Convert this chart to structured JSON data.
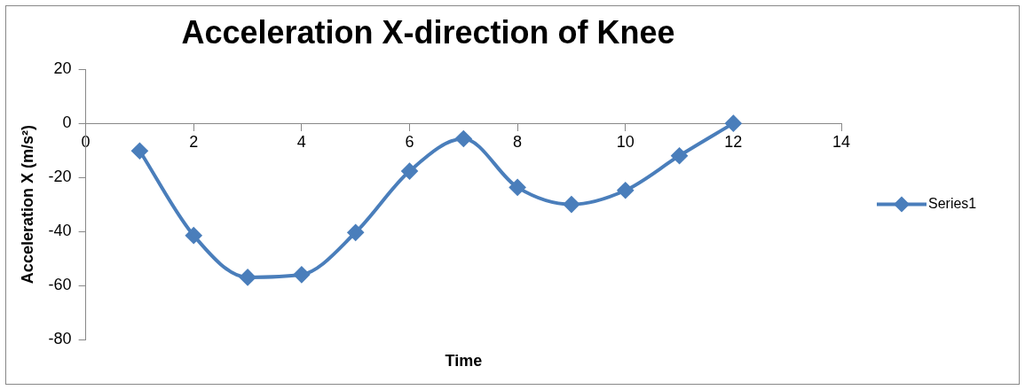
{
  "chart_data": {
    "type": "line",
    "title": "Acceleration X-direction of Knee",
    "xlabel": "Time",
    "ylabel": "Acceleration X (m/s²)",
    "x": [
      1,
      2,
      3,
      4,
      5,
      6,
      7,
      8,
      9,
      10,
      11,
      12
    ],
    "series": [
      {
        "name": "Series1",
        "color": "#4a7ebb",
        "values": [
          -10.2,
          -41.5,
          -57,
          -56,
          -40.4,
          -17.7,
          -5.7,
          -23.7,
          -30,
          -24.8,
          -12,
          0
        ]
      }
    ],
    "xlim": [
      0,
      14
    ],
    "xticks": [
      0,
      2,
      4,
      6,
      8,
      10,
      12,
      14
    ],
    "ylim": [
      -80,
      20
    ],
    "yticks": [
      -80,
      -60,
      -40,
      -20,
      0,
      20
    ],
    "grid": false,
    "legend": "right",
    "marker": "diamond",
    "line_style": "solid"
  }
}
